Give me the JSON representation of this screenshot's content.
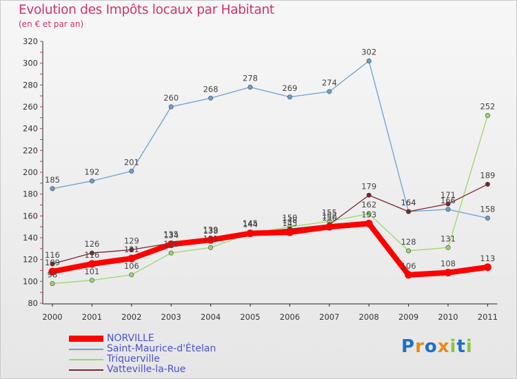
{
  "title": "Evolution des Impôts locaux par Habitant",
  "subtitle": "(en € et par an)",
  "logo_text": "Proxiti",
  "chart_data": {
    "type": "line",
    "title": "Evolution des Impôts locaux par Habitant",
    "subtitle": "(en € et par an)",
    "xlabel": "",
    "ylabel": "",
    "categories": [
      "2000",
      "2001",
      "2002",
      "2003",
      "2004",
      "2005",
      "2006",
      "2007",
      "2008",
      "2009",
      "2010",
      "2011"
    ],
    "ylim": [
      80,
      320
    ],
    "yticks": [
      80,
      100,
      120,
      140,
      160,
      180,
      200,
      220,
      240,
      260,
      280,
      300,
      320
    ],
    "grid": false,
    "legend_position": "bottom-left",
    "series": [
      {
        "name": "NORVILLE",
        "color": "#ff0000",
        "values": [
          109,
          116,
          121,
          134,
          138,
          144,
          145,
          150,
          153,
          106,
          108,
          113
        ]
      },
      {
        "name": "Saint-Maurice-d'Ételan",
        "color": "#6b9fd6",
        "values": [
          185,
          192,
          201,
          260,
          268,
          278,
          269,
          274,
          302,
          164,
          166,
          158
        ]
      },
      {
        "name": "Triquerville",
        "color": "#9ad66b",
        "values": [
          98,
          101,
          106,
          126,
          131,
          144,
          150,
          155,
          162,
          128,
          131,
          252
        ]
      },
      {
        "name": "Vatteville-la-Rue",
        "color": "#7a2530",
        "values": [
          116,
          126,
          129,
          135,
          139,
          145,
          148,
          152,
          179,
          164,
          171,
          189
        ]
      }
    ],
    "value_labels": [
      [
        "109",
        "116",
        "121",
        "134",
        "138",
        "144",
        "145",
        "150",
        "153",
        "106",
        "108",
        "113"
      ],
      [
        "185",
        "192",
        "201",
        "260",
        "268",
        "278",
        "269",
        "274",
        "302",
        "164",
        "166",
        "158"
      ],
      [
        "98",
        "101",
        "106",
        "126",
        "131",
        "144",
        "150",
        "155",
        "162",
        "128",
        "131",
        "252"
      ],
      [
        "116",
        "126",
        "129",
        "135",
        "139",
        "145",
        "148",
        "152",
        "179",
        "164",
        "171",
        "189"
      ]
    ]
  }
}
